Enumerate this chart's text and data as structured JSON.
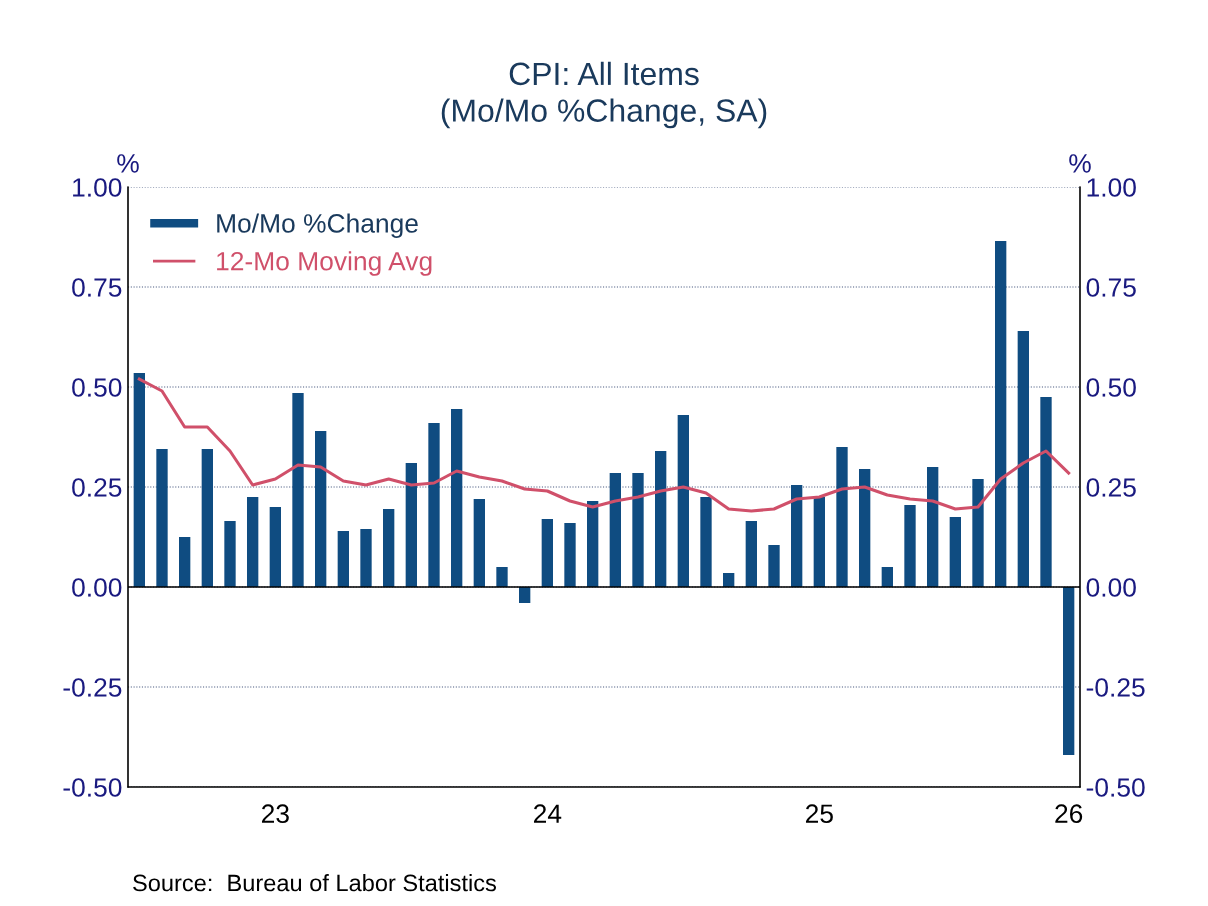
{
  "chart_data": {
    "type": "bar",
    "title": "CPI: All Items\n(Mo/Mo %Change, SA)",
    "ylabel": "%",
    "y2label": "%",
    "categories": [
      null,
      null,
      null,
      null,
      null,
      null,
      "23",
      null,
      null,
      null,
      null,
      null,
      null,
      null,
      null,
      null,
      null,
      null,
      "24",
      null,
      null,
      null,
      null,
      null,
      null,
      null,
      null,
      null,
      null,
      null,
      "25",
      null,
      null,
      null,
      null,
      null,
      null,
      null,
      null,
      null,
      null,
      "26"
    ],
    "series": [
      {
        "name": "Mo/Mo %Change",
        "color": "#0f4c81",
        "values": [
          0.535,
          0.345,
          0.125,
          0.345,
          0.165,
          0.225,
          0.2,
          0.485,
          0.39,
          0.14,
          0.145,
          0.195,
          0.31,
          0.41,
          0.445,
          0.22,
          0.05,
          -0.04,
          0.17,
          0.16,
          0.215,
          0.285,
          0.285,
          0.34,
          0.43,
          0.225,
          0.035,
          0.165,
          0.105,
          0.255,
          0.225,
          0.35,
          0.295,
          0.05,
          0.205,
          0.3,
          0.175,
          0.27,
          0.865,
          0.64,
          0.475,
          -0.42
        ]
      },
      {
        "name": "12-Mo Moving Avg",
        "type": "line",
        "color": "#d0506a",
        "values": [
          0.52,
          0.49,
          0.4,
          0.4,
          0.34,
          0.255,
          0.27,
          0.305,
          0.3,
          0.265,
          0.255,
          0.27,
          0.255,
          0.26,
          0.29,
          0.275,
          0.265,
          0.245,
          0.24,
          0.215,
          0.2,
          0.215,
          0.225,
          0.24,
          0.25,
          0.235,
          0.195,
          0.19,
          0.195,
          0.22,
          0.225,
          0.245,
          0.25,
          0.23,
          0.22,
          0.215,
          0.195,
          0.2,
          0.27,
          0.31,
          0.34,
          0.285
        ]
      }
    ],
    "ylim": [
      -0.5,
      1.0
    ],
    "yticks": [
      {
        "value": -0.5,
        "label": "-0.50"
      },
      {
        "value": -0.25,
        "label": "-0.25"
      },
      {
        "value": 0,
        "label": "0.00"
      },
      {
        "value": 0.25,
        "label": "0.25"
      },
      {
        "value": 0.5,
        "label": "0.50"
      },
      {
        "value": 0.75,
        "label": "0.75"
      },
      {
        "value": 1.0,
        "label": "1.00"
      }
    ],
    "y2lim": [
      -0.5,
      1.0
    ],
    "y2ticks": [
      {
        "value": -0.5,
        "label": "-0.50"
      },
      {
        "value": -0.25,
        "label": "-0.25"
      },
      {
        "value": 0,
        "label": "0.00"
      },
      {
        "value": 0.25,
        "label": "0.25"
      },
      {
        "value": 0.5,
        "label": "0.50"
      },
      {
        "value": 0.75,
        "label": "0.75"
      },
      {
        "value": 1.0,
        "label": "1.00"
      }
    ],
    "grid": "y",
    "legend": "top left",
    "annotations": [
      "Source:  Bureau of Labor Statistics"
    ]
  }
}
